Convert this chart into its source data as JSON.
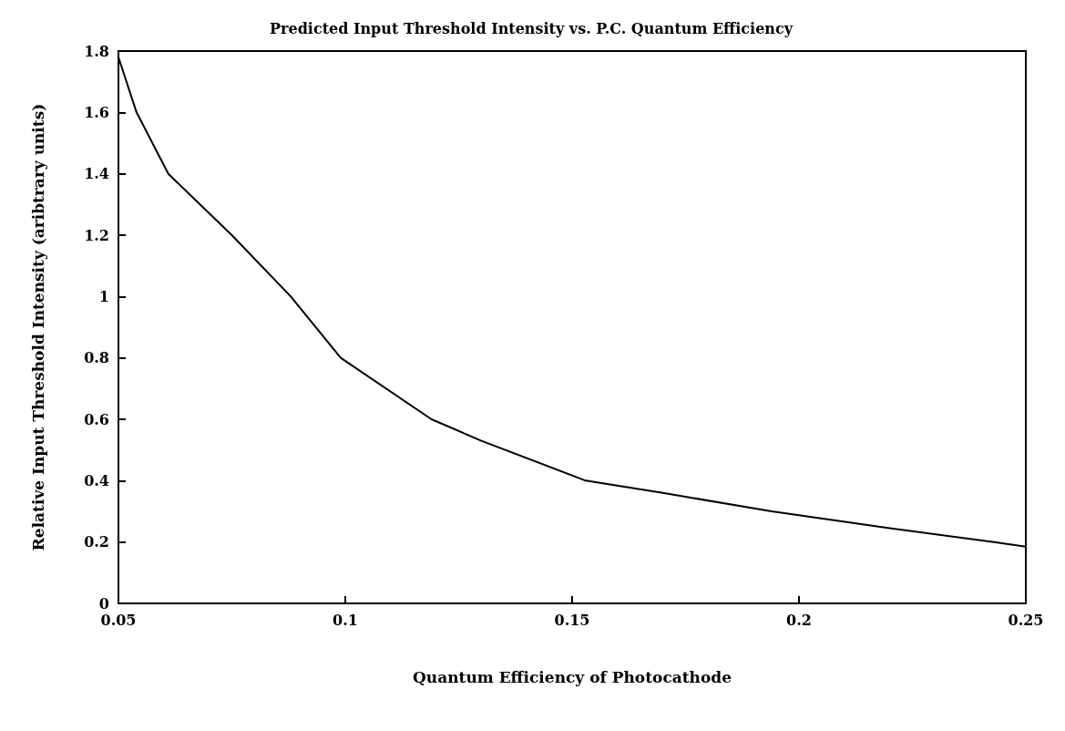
{
  "chart_data": {
    "type": "line",
    "title": "Predicted Input Threshold Intensity vs. P.C. Quantum Efficiency",
    "xlabel": "Quantum Efficiency of Photocathode",
    "ylabel": "Relative Input Threshold Intensity (aribtrary units)",
    "x": [
      0.05,
      0.054,
      0.061,
      0.075,
      0.088,
      0.099,
      0.119,
      0.13,
      0.153,
      0.17,
      0.194,
      0.22,
      0.243,
      0.25
    ],
    "series": [
      {
        "color": "#000000",
        "values": [
          1.78,
          1.6,
          1.4,
          1.2,
          1.0,
          0.8,
          0.6,
          0.53,
          0.4,
          0.36,
          0.3,
          0.245,
          0.2,
          0.185
        ]
      }
    ],
    "xlim": [
      0.05,
      0.25
    ],
    "xticks": [
      0.05,
      0.1,
      0.15,
      0.2,
      0.25
    ],
    "ylim": [
      0,
      1.8
    ],
    "yticks": [
      0,
      0.2,
      0.4,
      0.6,
      0.8,
      1,
      1.2,
      1.4,
      1.6,
      1.8
    ],
    "grid": false,
    "marker": "none",
    "line_style": "solid"
  }
}
